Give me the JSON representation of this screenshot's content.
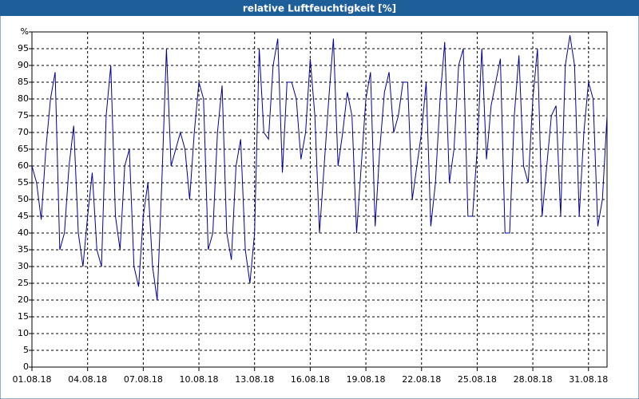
{
  "chart_data": {
    "type": "line",
    "title": "relative Luftfeuchtigkeit [%]",
    "categories": [
      "01.08.18",
      null,
      null,
      null,
      null,
      null,
      null,
      null,
      null,
      null,
      null,
      null,
      "04.08.18",
      null,
      null,
      null,
      null,
      null,
      null,
      null,
      null,
      null,
      null,
      null,
      "07.08.18",
      null,
      null,
      null,
      null,
      null,
      null,
      null,
      null,
      null,
      null,
      null,
      "10.08.18",
      null,
      null,
      null,
      null,
      null,
      null,
      null,
      null,
      null,
      null,
      null,
      "13.08.18",
      null,
      null,
      null,
      null,
      null,
      null,
      null,
      null,
      null,
      null,
      null,
      "16.08.18",
      null,
      null,
      null,
      null,
      null,
      null,
      null,
      null,
      null,
      null,
      null,
      "19.08.18",
      null,
      null,
      null,
      null,
      null,
      null,
      null,
      null,
      null,
      null,
      null,
      "22.08.18",
      null,
      null,
      null,
      null,
      null,
      null,
      null,
      null,
      null,
      null,
      null,
      "25.08.18",
      null,
      null,
      null,
      null,
      null,
      null,
      null,
      null,
      null,
      null,
      null,
      "28.08.18",
      null,
      null,
      null,
      null,
      null,
      null,
      null,
      null,
      null,
      null,
      null,
      "31.08.18",
      null,
      null,
      null,
      null
    ],
    "values": [
      60,
      55,
      44,
      65,
      80,
      88,
      35,
      40,
      60,
      72,
      40,
      30,
      45,
      58,
      35,
      30,
      75,
      90,
      45,
      35,
      60,
      65,
      30,
      24,
      45,
      55,
      30,
      20,
      55,
      95,
      60,
      65,
      70,
      65,
      50,
      70,
      85,
      80,
      35,
      40,
      70,
      84,
      40,
      32,
      60,
      68,
      35,
      25,
      40,
      95,
      70,
      68,
      90,
      98,
      58,
      85,
      85,
      80,
      62,
      70,
      92,
      75,
      40,
      60,
      80,
      98,
      60,
      70,
      82,
      75,
      40,
      60,
      80,
      88,
      42,
      65,
      82,
      88,
      70,
      75,
      85,
      85,
      50,
      60,
      70,
      85,
      42,
      55,
      80,
      97,
      55,
      65,
      90,
      95,
      45,
      45,
      65,
      95,
      62,
      78,
      85,
      92,
      40,
      40,
      75,
      93,
      60,
      55,
      80,
      95,
      45,
      60,
      75,
      78,
      45,
      90,
      99,
      90,
      45,
      70,
      85,
      80,
      42,
      50,
      75
    ],
    "color": "#000099",
    "ylim": [
      0,
      100
    ],
    "yticks": [
      0,
      5,
      10,
      15,
      20,
      25,
      30,
      35,
      40,
      45,
      50,
      55,
      60,
      65,
      70,
      75,
      80,
      85,
      90,
      95,
      {
        "value": 100,
        "label": "%"
      }
    ],
    "grid": true
  }
}
